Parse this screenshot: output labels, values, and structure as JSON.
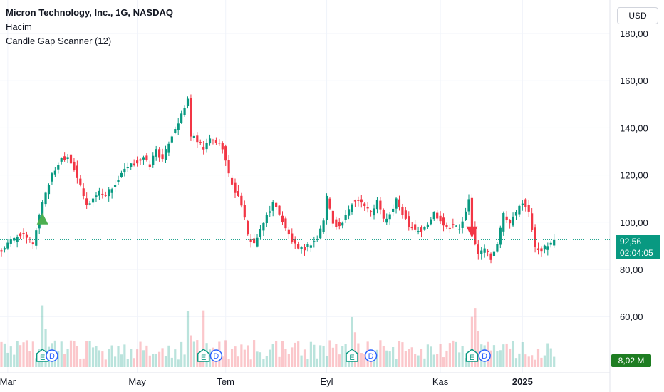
{
  "legend": {
    "symbol": "Micron Technology, Inc., 1G, NASDAQ",
    "indicator_1": "Hacim",
    "indicator_2": "Candle Gap Scanner (12)"
  },
  "currency": "USD",
  "last_price": "92,56",
  "countdown": "02:04:05",
  "volume_label": "8,02 M",
  "colors": {
    "up": "#089981",
    "down": "#f23645",
    "grid": "#f0f3fa",
    "price_line": "#089981",
    "signal_up": "#4caf50",
    "signal_down": "#f23645",
    "event": "#2962ff",
    "event_earn": "#089981"
  },
  "chart_data": {
    "type": "candlestick",
    "title": "Micron Technology, Inc., 1G, NASDAQ",
    "y_ticks": [
      "180,00",
      "160,00",
      "140,00",
      "120,00",
      "100,00",
      "80,00",
      "60,00"
    ],
    "y_tick_values": [
      180,
      160,
      140,
      120,
      100,
      80,
      60
    ],
    "ylim": [
      46,
      192
    ],
    "x_ticks": [
      "Mar",
      "May",
      "Tem",
      "Eyl",
      "Kas",
      "2025"
    ],
    "x_tick_days": [
      2,
      43,
      71,
      103,
      139,
      165
    ],
    "n_days": 186,
    "anchor_closes": [
      [
        0,
        88
      ],
      [
        3,
        92
      ],
      [
        6,
        95
      ],
      [
        10,
        91
      ],
      [
        13,
        109
      ],
      [
        16,
        120
      ],
      [
        19,
        127
      ],
      [
        21,
        128
      ],
      [
        23,
        123
      ],
      [
        25,
        115
      ],
      [
        27,
        107
      ],
      [
        29,
        110
      ],
      [
        31,
        113
      ],
      [
        33,
        112
      ],
      [
        36,
        116
      ],
      [
        39,
        122
      ],
      [
        42,
        125
      ],
      [
        45,
        127
      ],
      [
        47,
        124
      ],
      [
        49,
        131
      ],
      [
        51,
        126
      ],
      [
        53,
        134
      ],
      [
        55,
        140
      ],
      [
        57,
        145
      ],
      [
        59,
        152
      ],
      [
        60,
        137
      ],
      [
        62,
        134
      ],
      [
        64,
        131
      ],
      [
        66,
        135
      ],
      [
        68,
        134
      ],
      [
        70,
        132
      ],
      [
        72,
        120
      ],
      [
        74,
        113
      ],
      [
        76,
        108
      ],
      [
        78,
        94
      ],
      [
        80,
        91
      ],
      [
        82,
        96
      ],
      [
        84,
        103
      ],
      [
        86,
        108
      ],
      [
        88,
        104
      ],
      [
        90,
        97
      ],
      [
        92,
        92
      ],
      [
        94,
        88
      ],
      [
        96,
        89
      ],
      [
        98,
        91
      ],
      [
        100,
        93
      ],
      [
        102,
        101
      ],
      [
        103,
        111
      ],
      [
        105,
        100
      ],
      [
        107,
        98
      ],
      [
        109,
        102
      ],
      [
        111,
        108
      ],
      [
        113,
        110
      ],
      [
        115,
        107
      ],
      [
        117,
        104
      ],
      [
        119,
        109
      ],
      [
        121,
        101
      ],
      [
        123,
        103
      ],
      [
        125,
        109
      ],
      [
        127,
        104
      ],
      [
        129,
        99
      ],
      [
        131,
        97
      ],
      [
        133,
        96
      ],
      [
        135,
        99
      ],
      [
        137,
        104
      ],
      [
        139,
        101
      ],
      [
        141,
        98
      ],
      [
        143,
        99
      ],
      [
        145,
        97
      ],
      [
        147,
        104
      ],
      [
        148,
        109
      ],
      [
        149,
        97
      ],
      [
        151,
        86
      ],
      [
        153,
        89
      ],
      [
        155,
        85
      ],
      [
        157,
        91
      ],
      [
        159,
        103
      ],
      [
        161,
        99
      ],
      [
        163,
        104
      ],
      [
        165,
        109
      ],
      [
        167,
        104
      ],
      [
        169,
        90
      ],
      [
        171,
        88
      ],
      [
        173,
        90
      ],
      [
        175,
        92.56
      ]
    ],
    "gap_signals": [
      {
        "day": 13,
        "dir": "up",
        "price": 100
      },
      {
        "day": 149,
        "dir": "down",
        "price": 97
      }
    ],
    "events": [
      {
        "day": 13,
        "type": "E"
      },
      {
        "day": 16,
        "type": "D"
      },
      {
        "day": 64,
        "type": "E"
      },
      {
        "day": 68,
        "type": "D"
      },
      {
        "day": 111,
        "type": "E"
      },
      {
        "day": 117,
        "type": "D"
      },
      {
        "day": 149,
        "type": "E"
      },
      {
        "day": 153,
        "type": "D"
      }
    ]
  }
}
